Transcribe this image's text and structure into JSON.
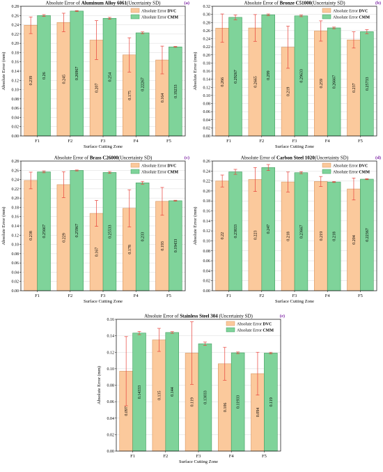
{
  "legend_labels": {
    "dvc_prefix": "Absolute Error ",
    "dvc_bold": "DVC",
    "cmm_prefix": "Absolute Error ",
    "cmm_bold": "CMM"
  },
  "colors": {
    "dvc_fill": "#fbc99c",
    "dvc_stroke": "#d8945f",
    "cmm_fill": "#7fd39a",
    "cmm_stroke": "#3f9c5e",
    "error_bar": "#e8413a",
    "tag": "#7a1fa2"
  },
  "chart_data": [
    {
      "type": "bar",
      "tag": "(a)",
      "title_prefix": "Absolute Error of ",
      "title_bold": "Aluminum Alloy 6061",
      "title_suffix": "(Uncertainty SD)",
      "xlabel": "Surface Cutting Zone",
      "ylabel": "Absolute Error (mm)",
      "categories": [
        "F1",
        "F2",
        "F3",
        "F4",
        "F5"
      ],
      "ylim": [
        0,
        0.28
      ],
      "yticks": [
        "0.00",
        "0.02",
        "0.04",
        "0.06",
        "0.08",
        "0.10",
        "0.12",
        "0.14",
        "0.16",
        "0.18",
        "0.20",
        "0.22",
        "0.24",
        "0.26",
        "0.28"
      ],
      "series": [
        {
          "name": "DVC",
          "values": [
            0.239,
            0.245,
            0.207,
            0.175,
            0.164
          ],
          "labels": [
            "0.239",
            "0.245",
            "0.207",
            "0.175",
            "0.164"
          ],
          "errors": [
            0.018,
            0.02,
            0.042,
            0.037,
            0.03
          ]
        },
        {
          "name": "CMM",
          "values": [
            0.26,
            0.26967,
            0.254,
            0.22267,
            0.19233
          ],
          "labels": [
            "0.26",
            "0.26967",
            "0.254",
            "0.22267",
            "0.19233"
          ],
          "errors": [
            0.002,
            0.001,
            0.002,
            0.002,
            0.001
          ]
        }
      ]
    },
    {
      "type": "bar",
      "tag": "(b)",
      "title_prefix": "Absolute Error of ",
      "title_bold": "Bronze C51000",
      "title_suffix": "(Uncertainty SD)",
      "xlabel": "Surface Cutting Zone",
      "ylabel": "Absolute Error (mm)",
      "categories": [
        "F1",
        "F2",
        "F3",
        "F4",
        "F5"
      ],
      "ylim": [
        0,
        0.32
      ],
      "yticks": [
        "0.00",
        "0.02",
        "0.04",
        "0.06",
        "0.08",
        "0.10",
        "0.12",
        "0.14",
        "0.16",
        "0.18",
        "0.20",
        "0.22",
        "0.24",
        "0.26",
        "0.28",
        "0.30",
        "0.32"
      ],
      "series": [
        {
          "name": "DVC",
          "values": [
            0.266,
            0.2665,
            0.219,
            0.259,
            0.237
          ],
          "labels": [
            "0.266",
            "0.2665",
            "0.219",
            "0.259",
            "0.237"
          ],
          "errors": [
            0.035,
            0.033,
            0.052,
            0.025,
            0.02
          ]
        },
        {
          "name": "CMM",
          "values": [
            0.29267,
            0.299,
            0.29633,
            0.26667,
            0.25733
          ],
          "labels": [
            "0.29267",
            "0.299",
            "0.29633",
            "0.26667",
            "0.25733"
          ],
          "errors": [
            0.006,
            0.002,
            0.002,
            0.002,
            0.005
          ]
        }
      ]
    },
    {
      "type": "bar",
      "tag": "(c)",
      "title_prefix": "Absolute Error of ",
      "title_bold": "Brass C26000",
      "title_suffix": "(Uncertainty SD)",
      "xlabel": "Surface Cutting Zone",
      "ylabel": "Absolute Error (mm)",
      "categories": [
        "F1",
        "F2",
        "F3",
        "F4",
        "F5"
      ],
      "ylim": [
        0,
        0.28
      ],
      "yticks": [
        "0.00",
        "0.02",
        "0.04",
        "0.06",
        "0.08",
        "0.10",
        "0.12",
        "0.14",
        "0.16",
        "0.18",
        "0.20",
        "0.22",
        "0.24",
        "0.26",
        "0.28"
      ],
      "series": [
        {
          "name": "DVC",
          "values": [
            0.238,
            0.229,
            0.167,
            0.178,
            0.193
          ],
          "labels": [
            "0.238",
            "0.229",
            "0.167",
            "0.178",
            "0.193"
          ],
          "errors": [
            0.018,
            0.028,
            0.028,
            0.04,
            0.03
          ]
        },
        {
          "name": "CMM",
          "values": [
            0.25667,
            0.25967,
            0.25533,
            0.233,
            0.19433
          ],
          "labels": [
            "0.25667",
            "0.25967",
            "0.25533",
            "0.233",
            "0.19433"
          ],
          "errors": [
            0.002,
            0.001,
            0.002,
            0.003,
            0.001
          ]
        }
      ]
    },
    {
      "type": "bar",
      "tag": "(d)",
      "title_prefix": "Absolute Error of ",
      "title_bold": "Carbon Steel 1020",
      "title_suffix": "(Uncertainty SD)",
      "xlabel": "Surface Cutting Zone",
      "ylabel": "Absolute Error (mm)",
      "categories": [
        "F1",
        "F2",
        "F3",
        "F4",
        "F5"
      ],
      "ylim": [
        0,
        0.26
      ],
      "yticks": [
        "0.00",
        "0.02",
        "0.04",
        "0.06",
        "0.08",
        "0.10",
        "0.12",
        "0.14",
        "0.16",
        "0.18",
        "0.20",
        "0.22",
        "0.24",
        "0.26"
      ],
      "series": [
        {
          "name": "DVC",
          "values": [
            0.22,
            0.223,
            0.218,
            0.219,
            0.204
          ],
          "labels": [
            "0.22",
            "0.223",
            "0.218",
            "0.219",
            "0.204"
          ],
          "errors": [
            0.012,
            0.024,
            0.02,
            0.01,
            0.022
          ]
        },
        {
          "name": "CMM",
          "values": [
            0.23833,
            0.247,
            0.23667,
            0.218,
            0.22367
          ],
          "labels": [
            "0.23833",
            "0.247",
            "0.23667",
            "0.218",
            "0.22367"
          ],
          "errors": [
            0.005,
            0.006,
            0.002,
            0.001,
            0.001
          ]
        }
      ]
    },
    {
      "type": "bar",
      "tag": "(e)",
      "title_prefix": "Absolute Error of ",
      "title_bold": "Stainless Steel 304",
      "title_suffix": " (Uncertainty SD)",
      "xlabel": "Surface Cutting Zone",
      "ylabel": "Absolute Error (mm)",
      "categories": [
        "F1",
        "F2",
        "F3",
        "F4",
        "F5"
      ],
      "ylim": [
        0,
        0.16
      ],
      "yticks": [
        "0.00",
        "0.02",
        "0.04",
        "0.06",
        "0.08",
        "0.10",
        "0.12",
        "0.14",
        "0.16"
      ],
      "series": [
        {
          "name": "DVC",
          "values": [
            0.097,
            0.135,
            0.119,
            0.106,
            0.094
          ],
          "labels": [
            "0.097",
            "0.135",
            "0.119",
            "0.106",
            "0.094"
          ],
          "errors": [
            0.042,
            0.014,
            0.038,
            0.02,
            0.026
          ]
        },
        {
          "name": "CMM",
          "values": [
            0.14333,
            0.144,
            0.13033,
            0.11933,
            0.119
          ],
          "labels": [
            "0.14333",
            "0.144",
            "0.13033",
            "0.11933",
            "0.119"
          ],
          "errors": [
            0.002,
            0.001,
            0.002,
            0.001,
            0.001
          ]
        }
      ]
    }
  ]
}
